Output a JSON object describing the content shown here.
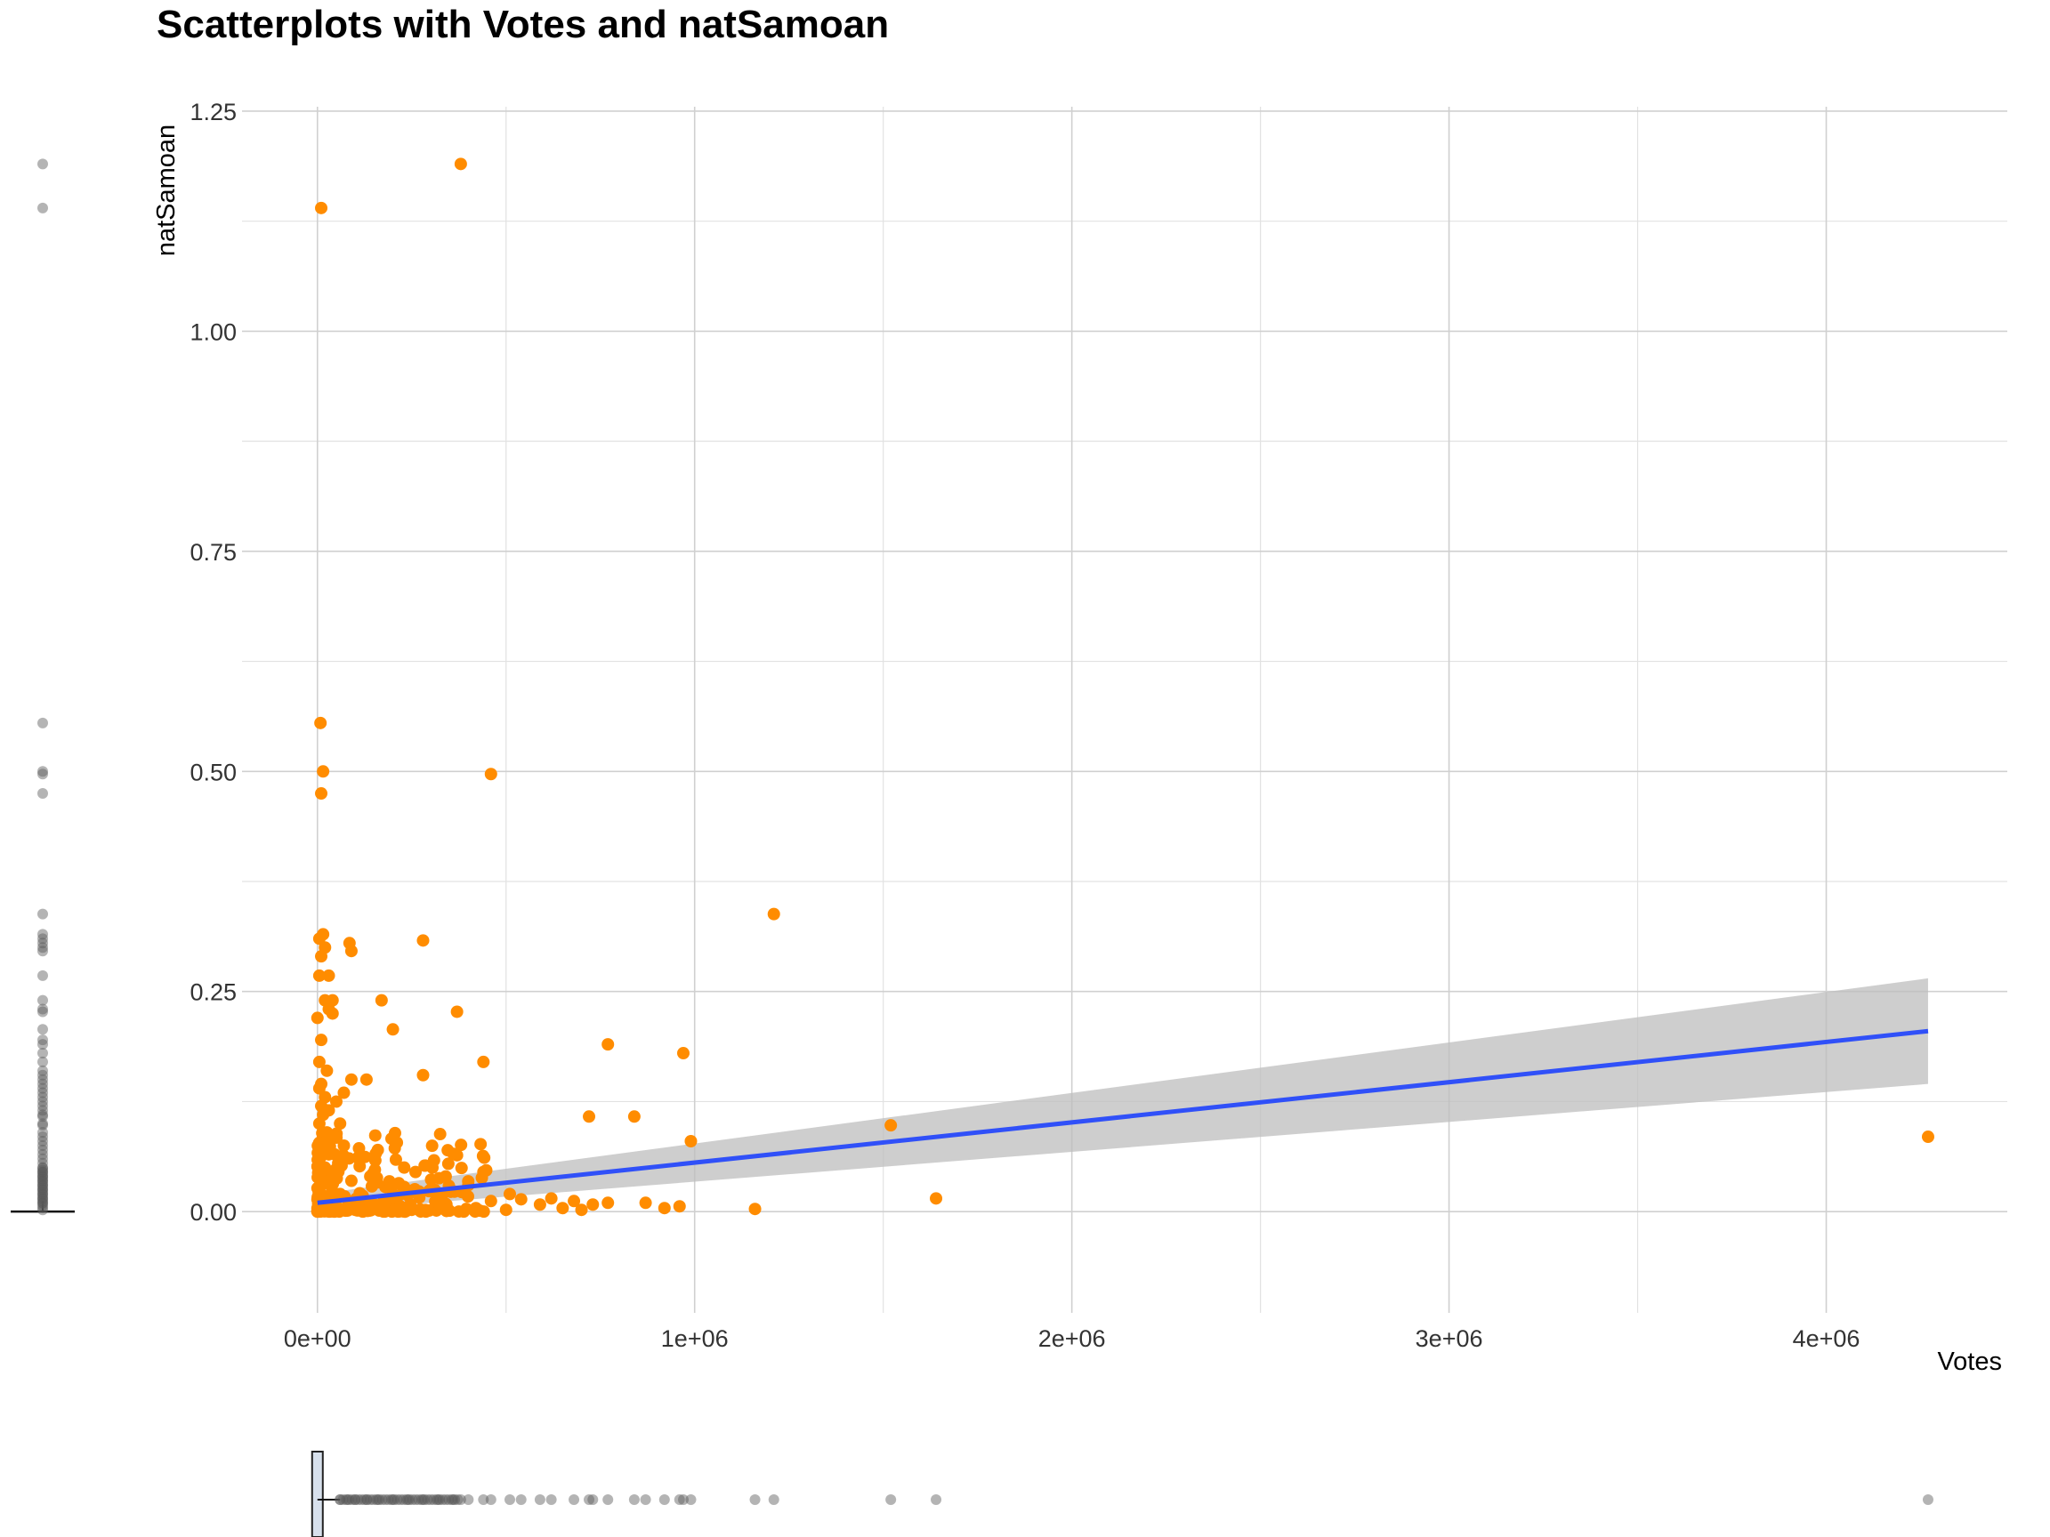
{
  "chart_data": {
    "type": "scatter",
    "title": "Scatterplots with Votes and natSamoan",
    "xlabel": "Votes",
    "ylabel": "natSamoan",
    "xlim": [
      -200000,
      4480000
    ],
    "ylim": [
      -0.115,
      1.255
    ],
    "x_ticks": [
      0,
      1000000,
      2000000,
      3000000,
      4000000
    ],
    "x_tick_labels": [
      "0e+00",
      "1e+06",
      "2e+06",
      "3e+06",
      "4e+06"
    ],
    "y_ticks": [
      0,
      0.25,
      0.5,
      0.75,
      1.0,
      1.25
    ],
    "y_tick_labels": [
      "0.00",
      "0.25",
      "0.50",
      "0.75",
      "1.00",
      "1.25"
    ],
    "grid": true,
    "colors": {
      "points": "#FF8C00",
      "trend": "#3050F8",
      "band": "#BEBEBE",
      "marginal": "#595959"
    },
    "series": [
      {
        "type": "scatter",
        "points": [
          [
            10000,
            1.14
          ],
          [
            380000,
            1.19
          ],
          [
            8000,
            0.555
          ],
          [
            15000,
            0.5
          ],
          [
            460000,
            0.497
          ],
          [
            10000,
            0.475
          ],
          [
            1210000,
            0.338
          ],
          [
            15000,
            0.315
          ],
          [
            5000,
            0.31
          ],
          [
            280000,
            0.308
          ],
          [
            85000,
            0.305
          ],
          [
            90000,
            0.296
          ],
          [
            20000,
            0.3
          ],
          [
            10000,
            0.29
          ],
          [
            5000,
            0.268
          ],
          [
            30000,
            0.268
          ],
          [
            40000,
            0.24
          ],
          [
            20000,
            0.24
          ],
          [
            170000,
            0.24
          ],
          [
            30000,
            0.23
          ],
          [
            40000,
            0.225
          ],
          [
            370000,
            0.227
          ],
          [
            0,
            0.22
          ],
          [
            200000,
            0.207
          ],
          [
            10000,
            0.195
          ],
          [
            770000,
            0.19
          ],
          [
            970000,
            0.18
          ],
          [
            5000,
            0.17
          ],
          [
            440000,
            0.17
          ],
          [
            25000,
            0.16
          ],
          [
            280000,
            0.155
          ],
          [
            90000,
            0.15
          ],
          [
            130000,
            0.15
          ],
          [
            10000,
            0.145
          ],
          [
            5000,
            0.14
          ],
          [
            70000,
            0.135
          ],
          [
            20000,
            0.13
          ],
          [
            50000,
            0.125
          ],
          [
            10000,
            0.12
          ],
          [
            30000,
            0.115
          ],
          [
            15000,
            0.11
          ],
          [
            720000,
            0.108
          ],
          [
            840000,
            0.108
          ],
          [
            5000,
            0.1
          ],
          [
            60000,
            0.1
          ],
          [
            1520000,
            0.098
          ],
          [
            25000,
            0.09
          ],
          [
            40000,
            0.085
          ],
          [
            10000,
            0.08
          ],
          [
            990000,
            0.08
          ],
          [
            70000,
            0.075
          ],
          [
            205000,
            0.072
          ],
          [
            160000,
            0.07
          ],
          [
            30000,
            0.065
          ],
          [
            370000,
            0.064
          ],
          [
            110000,
            0.06
          ],
          [
            55000,
            0.055
          ],
          [
            20000,
            0.05
          ],
          [
            230000,
            0.05
          ],
          [
            260000,
            0.045
          ],
          [
            440000,
            0.045
          ],
          [
            140000,
            0.04
          ],
          [
            340000,
            0.04
          ],
          [
            90000,
            0.035
          ],
          [
            10000,
            0.03
          ],
          [
            400000,
            0.03
          ],
          [
            180000,
            0.028
          ],
          [
            300000,
            0.025
          ],
          [
            60000,
            0.02
          ],
          [
            510000,
            0.02
          ],
          [
            120000,
            0.018
          ],
          [
            270000,
            0.016
          ],
          [
            1640000,
            0.015
          ],
          [
            620000,
            0.015
          ],
          [
            540000,
            0.014
          ],
          [
            680000,
            0.012
          ],
          [
            460000,
            0.012
          ],
          [
            870000,
            0.01
          ],
          [
            770000,
            0.01
          ],
          [
            730000,
            0.008
          ],
          [
            590000,
            0.008
          ],
          [
            320000,
            0.008
          ],
          [
            210000,
            0.006
          ],
          [
            960000,
            0.006
          ],
          [
            920000,
            0.004
          ],
          [
            1160000,
            0.003
          ],
          [
            420000,
            0.004
          ],
          [
            650000,
            0.004
          ],
          [
            150000,
            0.003
          ],
          [
            5000,
            0.002
          ],
          [
            25000,
            0.002
          ],
          [
            45000,
            0.003
          ],
          [
            100000,
            0.002
          ],
          [
            250000,
            0.002
          ],
          [
            350000,
            0.001
          ],
          [
            500000,
            0.002
          ],
          [
            700000,
            0.002
          ],
          [
            75000,
            0.001
          ],
          [
            4270000,
            0.085
          ]
        ]
      },
      {
        "type": "line",
        "name": "",
        "x": [
          0,
          4270000
        ],
        "y": [
          0.01,
          0.205
        ],
        "ci_lower": [
          0.0,
          0.145
        ],
        "ci_upper": [
          0.02,
          0.265
        ]
      }
    ],
    "marginal_y_outliers": [
      1.19,
      1.14,
      0.555,
      0.5,
      0.497,
      0.475,
      0.338,
      0.315,
      0.31,
      0.305,
      0.3,
      0.296,
      0.268,
      0.24,
      0.23,
      0.227,
      0.207,
      0.195,
      0.19,
      0.18,
      0.17,
      0.16,
      0.155,
      0.15,
      0.145,
      0.14,
      0.135,
      0.13,
      0.125,
      0.12,
      0.115,
      0.11,
      0.108,
      0.1,
      0.098,
      0.09,
      0.085,
      0.08,
      0.075,
      0.07,
      0.065,
      0.06,
      0.055,
      0.05,
      0.045,
      0.04,
      0.035,
      0.03,
      0.025,
      0.02,
      0.015,
      0.01
    ],
    "marginal_x_outliers": [
      60000,
      80000,
      100000,
      130000,
      160000,
      200000,
      240000,
      280000,
      320000,
      360000,
      380000,
      400000,
      440000,
      460000,
      510000,
      540000,
      590000,
      620000,
      680000,
      720000,
      730000,
      770000,
      840000,
      870000,
      920000,
      960000,
      970000,
      990000,
      1160000,
      1210000,
      1520000,
      1640000,
      4270000
    ]
  }
}
